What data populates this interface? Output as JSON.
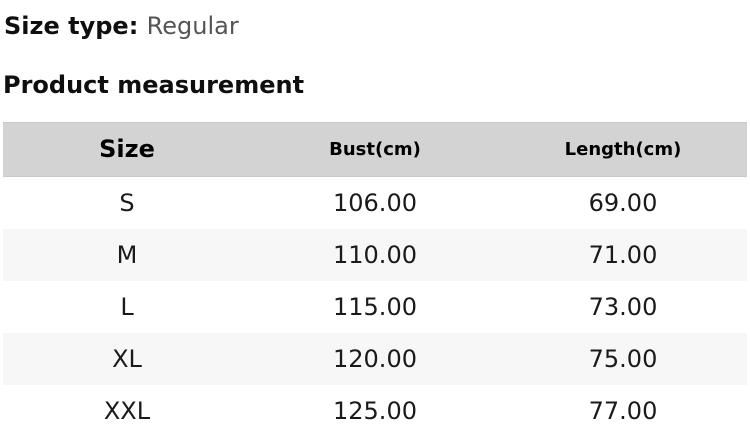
{
  "page": {
    "size_type_label": "Size type:",
    "size_type_value": "Regular",
    "section_title": "Product measurement"
  },
  "table": {
    "headers": [
      "Size",
      "Bust(cm)",
      "Length(cm)"
    ],
    "rows": [
      {
        "size": "S",
        "bust": "106.00",
        "length": "69.00"
      },
      {
        "size": "M",
        "bust": "110.00",
        "length": "71.00"
      },
      {
        "size": "L",
        "bust": "115.00",
        "length": "73.00"
      },
      {
        "size": "XL",
        "bust": "120.00",
        "length": "75.00"
      },
      {
        "size": "XXL",
        "bust": "125.00",
        "length": "77.00"
      }
    ]
  },
  "colors": {
    "header_bg": "#d3d3d3",
    "row_alt_bg": "#f7f7f7",
    "heading_text": "#0f0f0f",
    "muted_text": "#555555",
    "body_text": "#1a1a1a"
  }
}
